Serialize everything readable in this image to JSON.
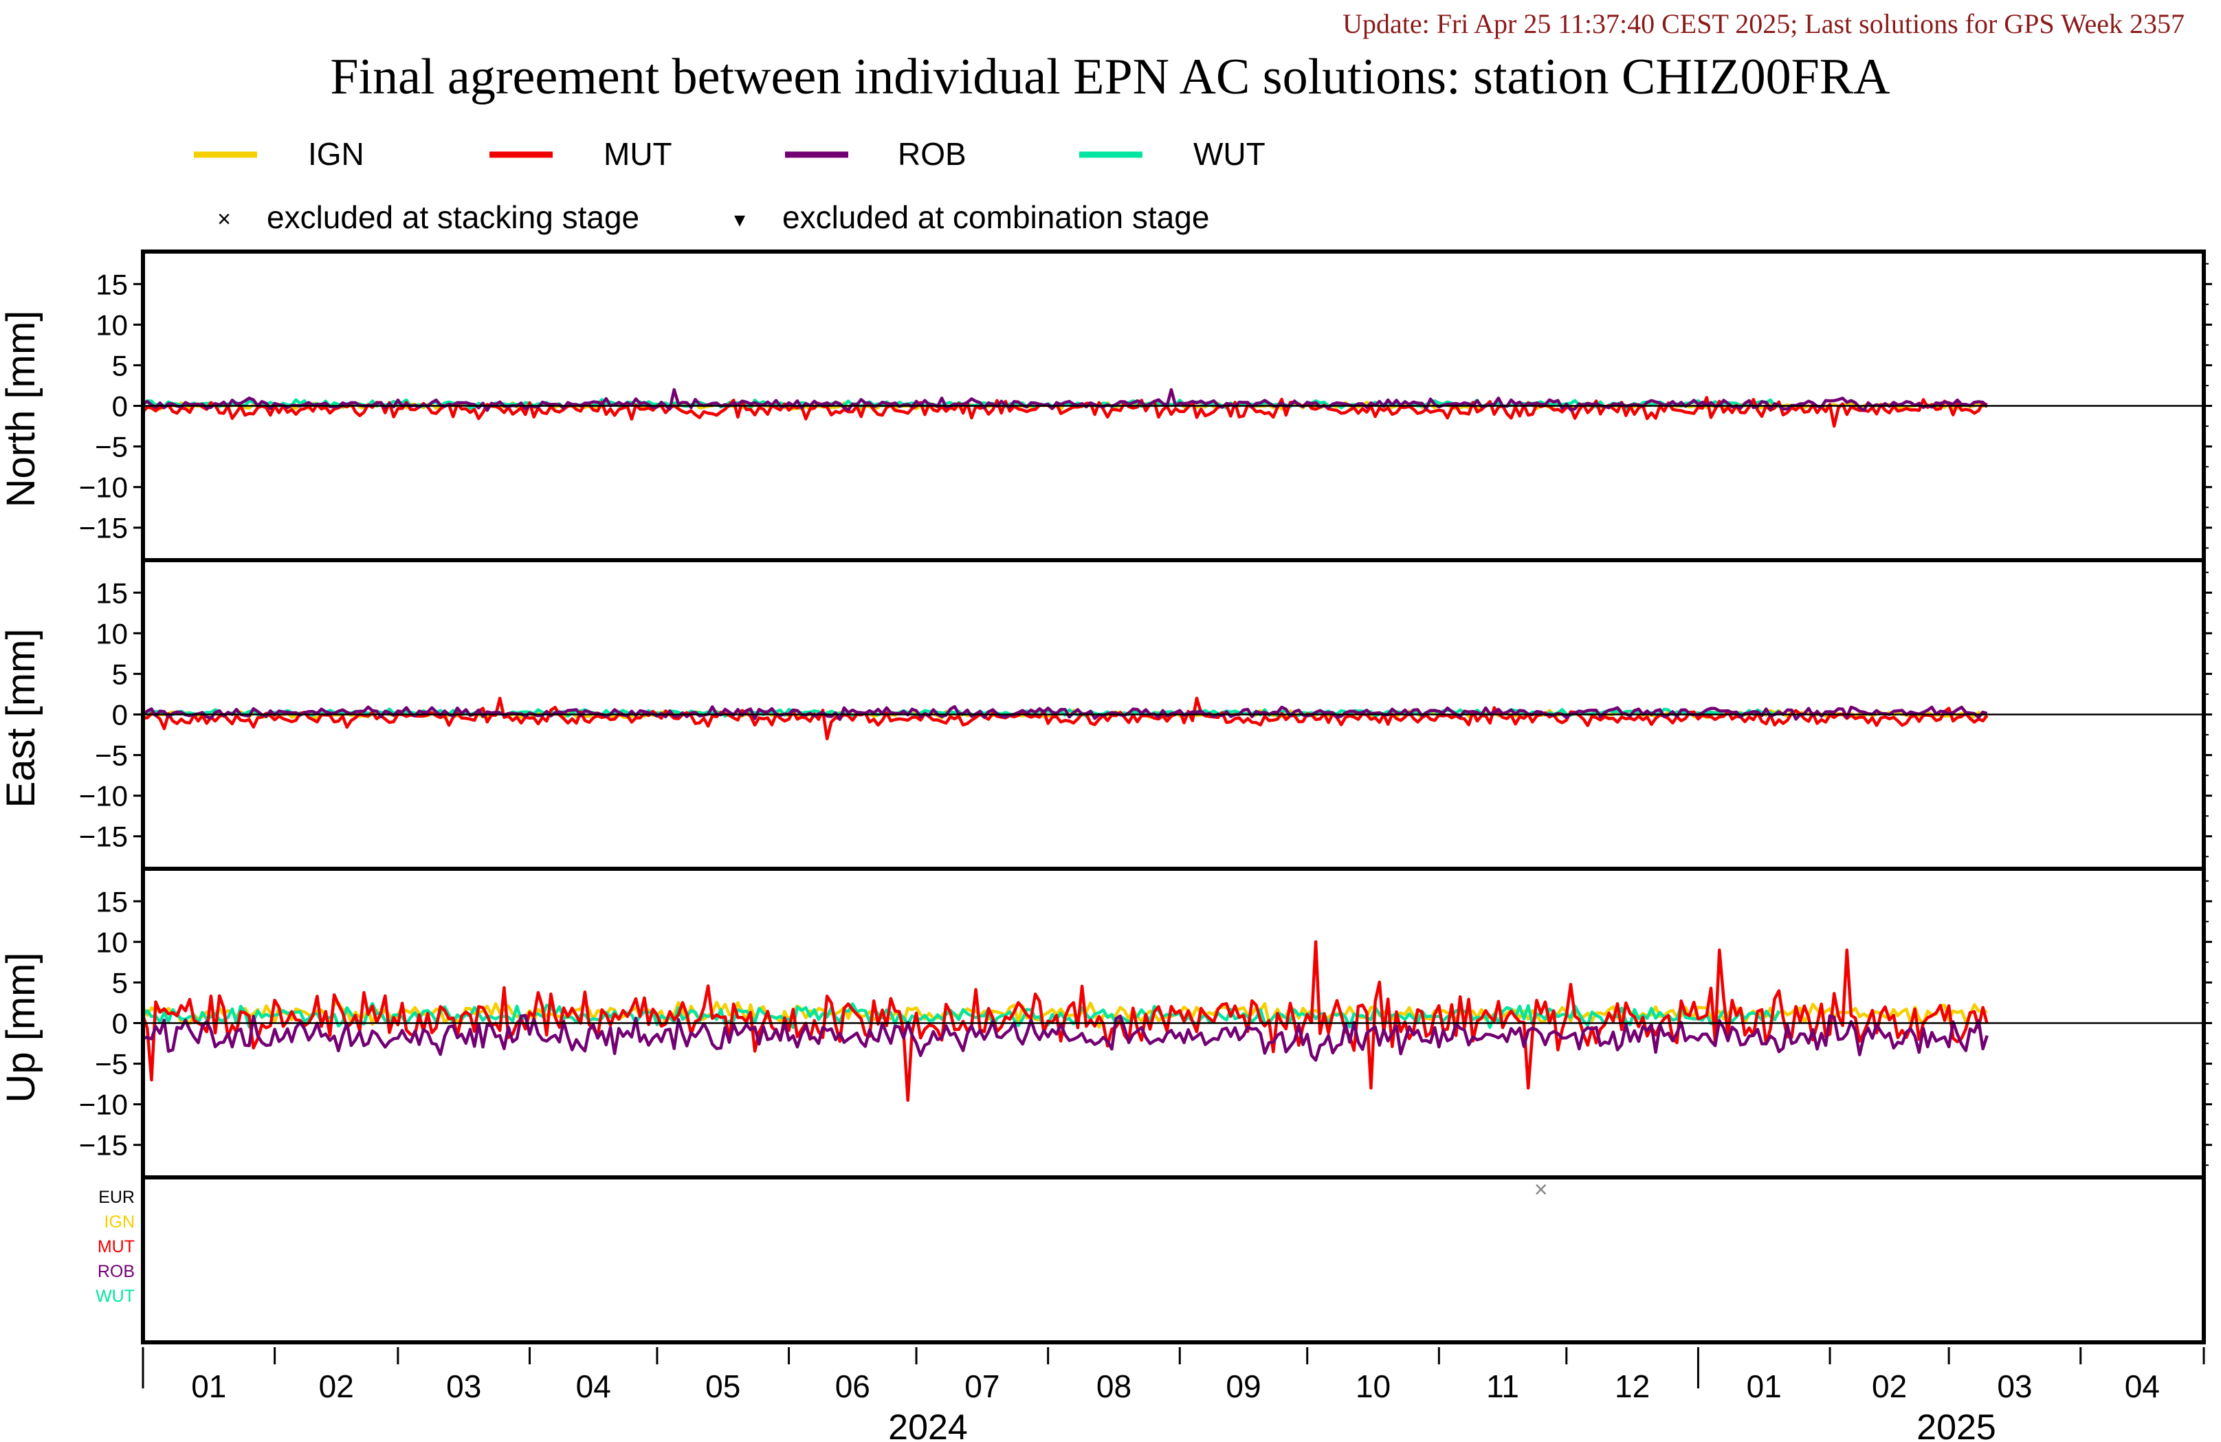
{
  "header": {
    "update_text": "Update: Fri Apr 25 11:37:40 CEST 2025; Last solutions for GPS Week 2357",
    "title": "Final agreement between individual EPN AC solutions: station CHIZ00FRA"
  },
  "legend": {
    "series": [
      {
        "label": "IGN",
        "color": "#f5cf00"
      },
      {
        "label": "MUT",
        "color": "#f20000"
      },
      {
        "label": "ROB",
        "color": "#720072"
      },
      {
        "label": "WUT",
        "color": "#00e6a0"
      }
    ],
    "markers": [
      {
        "symbol": "×",
        "label": "excluded at stacking stage"
      },
      {
        "symbol": "▾",
        "label": "excluded at combination stage"
      }
    ]
  },
  "panels": [
    {
      "ylabel": "North [mm]",
      "ticks": [
        "15",
        "10",
        "5",
        "0",
        "−5",
        "−10",
        "−15"
      ]
    },
    {
      "ylabel": "East [mm]",
      "ticks": [
        "15",
        "10",
        "5",
        "0",
        "−5",
        "−10",
        "−15"
      ]
    },
    {
      "ylabel": "Up [mm]",
      "ticks": [
        "15",
        "10",
        "5",
        "0",
        "−5",
        "−10",
        "−15"
      ]
    }
  ],
  "exclusion_panel": {
    "labels": [
      {
        "text": "EUR",
        "color": "#000000"
      },
      {
        "text": "IGN",
        "color": "#f5cf00"
      },
      {
        "text": "MUT",
        "color": "#f20000"
      },
      {
        "text": "ROB",
        "color": "#720072"
      },
      {
        "text": "WUT",
        "color": "#00e6a0"
      }
    ],
    "marks": [
      {
        "symbol": "×",
        "x": "2024-11-25",
        "row": "EUR"
      }
    ]
  },
  "x_axis": {
    "month_labels": [
      "01",
      "02",
      "03",
      "04",
      "05",
      "06",
      "07",
      "08",
      "09",
      "10",
      "11",
      "12",
      "01",
      "02",
      "03",
      "04"
    ],
    "year_labels": [
      "2024",
      "2025"
    ]
  },
  "chart_data": {
    "type": "line",
    "xlim": [
      "2024-01-01",
      "2025-04-30"
    ],
    "ylim": [
      -19,
      19
    ],
    "y_ticks": [
      15,
      10,
      5,
      0,
      -5,
      -10,
      -15
    ],
    "components": [
      "North",
      "East",
      "Up"
    ],
    "series_spans": {
      "IGN": [
        "2024-01-01",
        "2025-03-10"
      ],
      "MUT": [
        "2024-01-01",
        "2025-03-10"
      ],
      "ROB": [
        "2024-01-01",
        "2025-03-10"
      ],
      "WUT": [
        "2024-01-01",
        "2025-01-20"
      ]
    },
    "typical_amplitude_mm": {
      "North": {
        "IGN": 0.4,
        "MUT": 1.0,
        "ROB": 0.6,
        "WUT": 0.4
      },
      "East": {
        "IGN": 0.4,
        "MUT": 1.0,
        "ROB": 0.6,
        "WUT": 0.4
      },
      "Up": {
        "IGN": 1.2,
        "MUT": 3.5,
        "ROB": 2.2,
        "WUT": 1.2
      }
    },
    "notable_values_mm": {
      "North": [
        {
          "series": "ROB",
          "x": "2024-05-05",
          "y": 2
        },
        {
          "series": "ROB",
          "x": "2024-08-30",
          "y": 2
        },
        {
          "series": "MUT",
          "x": "2025-02-02",
          "y": -2.5
        }
      ],
      "East": [
        {
          "series": "MUT",
          "x": "2024-03-25",
          "y": 2
        },
        {
          "series": "MUT",
          "x": "2024-06-10",
          "y": -3
        },
        {
          "series": "MUT",
          "x": "2024-09-05",
          "y": 2
        }
      ],
      "Up": [
        {
          "series": "MUT",
          "x": "2024-01-03",
          "y": -7
        },
        {
          "series": "MUT",
          "x": "2024-06-29",
          "y": -9.5
        },
        {
          "series": "MUT",
          "x": "2024-10-03",
          "y": 10
        },
        {
          "series": "MUT",
          "x": "2024-10-16",
          "y": -8
        },
        {
          "series": "MUT",
          "x": "2024-11-22",
          "y": -8
        },
        {
          "series": "MUT",
          "x": "2025-01-06",
          "y": 9
        },
        {
          "series": "MUT",
          "x": "2025-02-05",
          "y": 9
        }
      ]
    }
  }
}
